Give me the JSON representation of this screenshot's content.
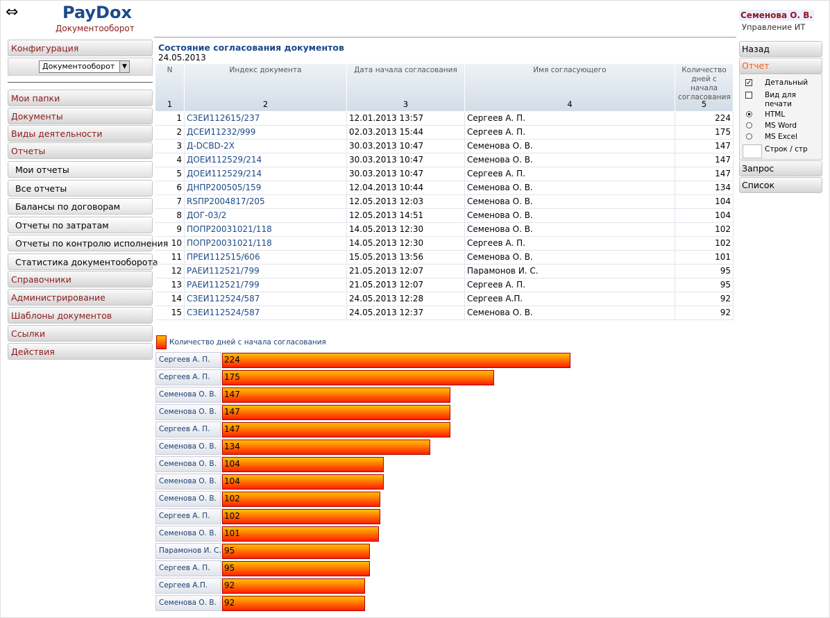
{
  "header": {
    "logo": "PayDox",
    "subtitle": "Документооборот",
    "user": "Семенова О. В.",
    "department": "Управление ИТ"
  },
  "left_menu": {
    "config": "Конфигурация",
    "select": "Документооборот",
    "items": [
      "Мои папки",
      "Документы",
      "Виды деятельности",
      "Отчеты"
    ],
    "sub_items": [
      "Мои отчеты",
      "Все отчеты",
      "Балансы по договорам",
      "Отчеты по затратам",
      "Отчеты по контролю исполнения",
      "Статистика документооборота"
    ],
    "items_after": [
      "Справочники",
      "Администрирование",
      "Шаблоны документов",
      "Ссылки",
      "Действия"
    ]
  },
  "right_menu": {
    "back": "Назад",
    "report": "Отчет",
    "options": [
      "Детальный",
      "Вид для печати",
      "HTML",
      "MS Word",
      "MS Excel",
      "Строк / стр"
    ],
    "request": "Запрос",
    "list": "Список"
  },
  "report": {
    "title": "Состояние согласования документов",
    "date": "24.05.2013",
    "columns": [
      "N",
      "Индекс документа",
      "Дата начала согласования",
      "Имя согласующего",
      "Количество дней с начала согласования"
    ],
    "column_numbers": [
      1,
      2,
      3,
      4,
      5
    ],
    "rows": [
      [
        1,
        "СЗЕИ112615/237",
        "12.01.2013 13:57",
        "Сергеев А. П.",
        224
      ],
      [
        2,
        "ДСЕИ11232/999",
        "02.03.2013 15:44",
        "Сергеев А. П.",
        175
      ],
      [
        3,
        "Д-DCBD-2X",
        "30.03.2013 10:47",
        "Семенова О. В.",
        147
      ],
      [
        4,
        "ДОЕИ112529/214",
        "30.03.2013 10:47",
        "Семенова О. В.",
        147
      ],
      [
        5,
        "ДОЕИ112529/214",
        "30.03.2013 10:47",
        "Сергеев А. П.",
        147
      ],
      [
        6,
        "ДНПР200505/159",
        "12.04.2013 10:44",
        "Семенова О. В.",
        134
      ],
      [
        7,
        "RSПР2004817/205",
        "12.05.2013 12:03",
        "Семенова О. В.",
        104
      ],
      [
        8,
        "ДОГ-03/2",
        "12.05.2013 14:51",
        "Семенова О. В.",
        104
      ],
      [
        9,
        "ПОПР20031021/118",
        "14.05.2013 12:30",
        "Семенова О. В.",
        102
      ],
      [
        10,
        "ПОПР20031021/118",
        "14.05.2013 12:30",
        "Сергеев А. П.",
        102
      ],
      [
        11,
        "ПРЕИ112515/606",
        "15.05.2013 13:56",
        "Семенова О. В.",
        101
      ],
      [
        12,
        "РАЕИ112521/799",
        "21.05.2013 12:07",
        "Парамонов И. С.",
        95
      ],
      [
        13,
        "РАЕИ112521/799",
        "21.05.2013 12:07",
        "Сергеев А. П.",
        95
      ],
      [
        14,
        "СЗЕИ112524/587",
        "24.05.2013 12:28",
        "Сергеев А.П.",
        92
      ],
      [
        15,
        "СЗЕИ112524/587",
        "24.05.2013 12:37",
        "Семенова О. В.",
        92
      ]
    ]
  },
  "chart": {
    "legend": "Количество дней с начала согласования"
  }
}
